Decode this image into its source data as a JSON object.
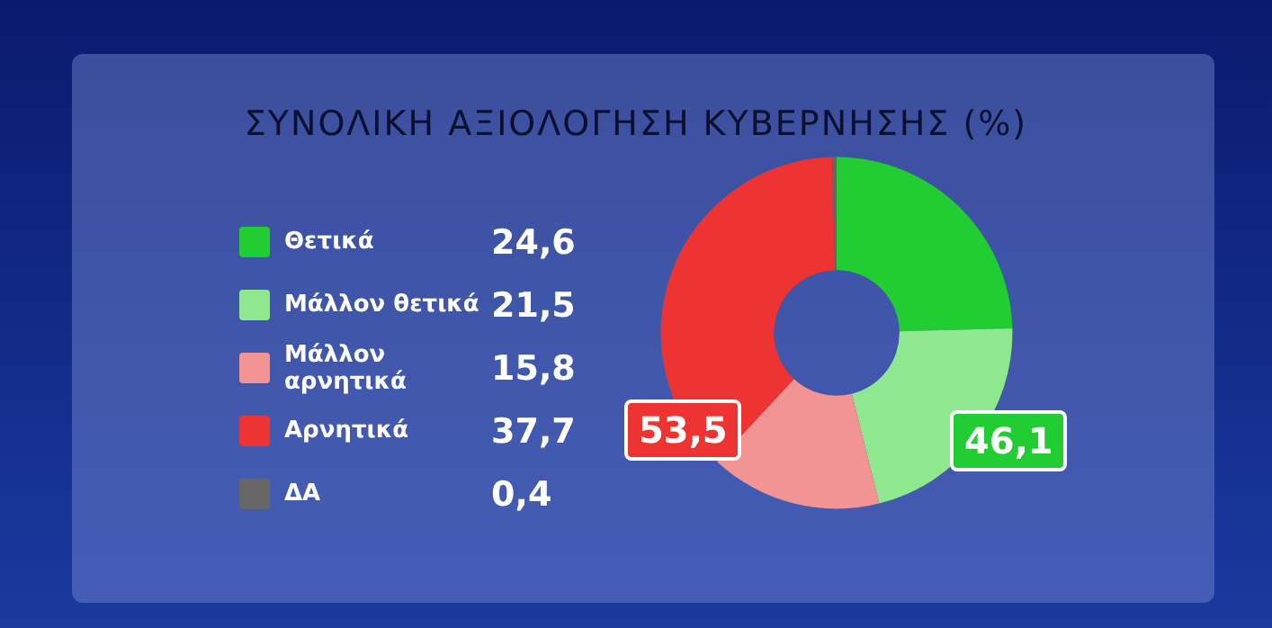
{
  "chart_data": {
    "type": "donut",
    "title": "ΣΥΝΟΛΙΚΗ ΑΞΙΟΛΟΓΗΣΗ ΚΥΒΕΡΝΗΣΗΣ (%)",
    "categories": [
      "Θετικά",
      "Μάλλον θετικά",
      "Μάλλον αρνητικά",
      "Αρνητικά",
      "ΔΑ"
    ],
    "values": [
      24.6,
      21.5,
      15.8,
      37.7,
      0.4
    ],
    "value_labels": [
      "24,6",
      "21,5",
      "15,8",
      "37,7",
      "0,4"
    ],
    "colors": [
      "#22cc33",
      "#8ee88e",
      "#f29494",
      "#ee3333",
      "#666666"
    ],
    "annotations": [
      "53,5",
      "46,1"
    ],
    "legend": "left"
  }
}
